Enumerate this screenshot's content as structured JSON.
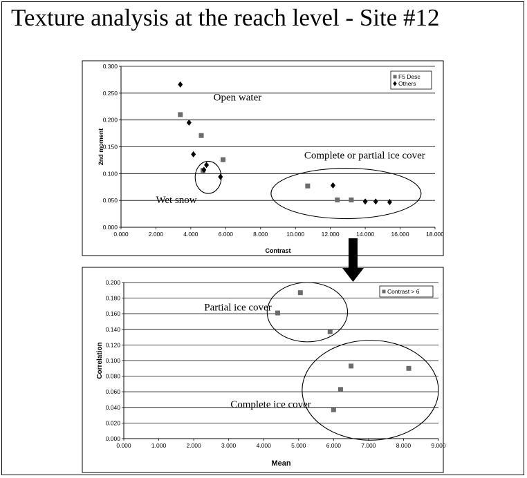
{
  "title": "Texture analysis at the reach level - Site #12",
  "colors": {
    "square": "#6b6b6b",
    "diamond": "#000000",
    "grid": "#000000",
    "border": "#000000"
  },
  "chart_data": [
    {
      "type": "scatter",
      "xlabel": "Contrast",
      "ylabel": "2nd moment",
      "xlim": [
        0,
        18
      ],
      "ylim": [
        0,
        0.3
      ],
      "x_ticks": [
        "0.000",
        "2.000",
        "4.000",
        "6.000",
        "8.000",
        "10.000",
        "12.000",
        "14.000",
        "16.000",
        "18.000"
      ],
      "y_ticks": [
        "0.000",
        "0.050",
        "0.100",
        "0.150",
        "0.200",
        "0.250",
        "0.300"
      ],
      "grid": "horizontal",
      "legend_position": "top-right",
      "series": [
        {
          "name": "F5 Desc",
          "marker": "square",
          "points": [
            [
              3.4,
              0.21
            ],
            [
              4.6,
              0.171
            ],
            [
              4.7,
              0.106
            ],
            [
              5.85,
              0.126
            ],
            [
              10.7,
              0.077
            ],
            [
              12.4,
              0.051
            ],
            [
              13.2,
              0.051
            ]
          ]
        },
        {
          "name": "Others",
          "marker": "diamond",
          "points": [
            [
              3.4,
              0.266
            ],
            [
              3.9,
              0.195
            ],
            [
              4.15,
              0.136
            ],
            [
              4.75,
              0.107
            ],
            [
              4.9,
              0.116
            ],
            [
              5.7,
              0.094
            ],
            [
              12.15,
              0.078
            ],
            [
              14.0,
              0.048
            ],
            [
              14.6,
              0.048
            ],
            [
              15.4,
              0.047
            ]
          ]
        }
      ],
      "annotations": [
        {
          "text": "Open water",
          "x": 5.3,
          "y": 0.236
        },
        {
          "text": "Complete or partial ice cover",
          "x": 10.5,
          "y": 0.128
        },
        {
          "text": "Wet snow",
          "x": 2.0,
          "y": 0.045
        }
      ],
      "ellipses": [
        {
          "cx": 5.0,
          "cy": 0.093,
          "rx": 0.75,
          "ry": 0.03
        },
        {
          "cx": 12.9,
          "cy": 0.063,
          "rx": 4.3,
          "ry": 0.047
        }
      ]
    },
    {
      "type": "scatter",
      "xlabel": "Mean",
      "ylabel": "Correlation",
      "xlim": [
        0,
        9
      ],
      "ylim": [
        0,
        0.2
      ],
      "x_ticks": [
        "0.000",
        "1.000",
        "2.000",
        "3.000",
        "4.000",
        "5.000",
        "6.000",
        "7.000",
        "8.000",
        "9.000"
      ],
      "y_ticks": [
        "0.000",
        "0.020",
        "0.040",
        "0.060",
        "0.080",
        "0.100",
        "0.120",
        "0.140",
        "0.160",
        "0.180",
        "0.200"
      ],
      "grid": "horizontal",
      "legend_position": "top-right",
      "series": [
        {
          "name": "Contrast > 6",
          "marker": "square",
          "points": [
            [
              4.4,
              0.161
            ],
            [
              5.05,
              0.187
            ],
            [
              5.9,
              0.137
            ],
            [
              6.5,
              0.093
            ],
            [
              6.2,
              0.063
            ],
            [
              6.0,
              0.037
            ],
            [
              8.15,
              0.09
            ]
          ]
        }
      ],
      "annotations": [
        {
          "text": "Partial ice cover",
          "x": 2.3,
          "y": 0.164
        },
        {
          "text": "Complete ice cover",
          "x": 3.05,
          "y": 0.04
        }
      ],
      "ellipses": [
        {
          "cx": 5.25,
          "cy": 0.162,
          "rx": 1.15,
          "ry": 0.038
        },
        {
          "cx": 7.05,
          "cy": 0.062,
          "rx": 1.95,
          "ry": 0.064
        }
      ]
    }
  ]
}
